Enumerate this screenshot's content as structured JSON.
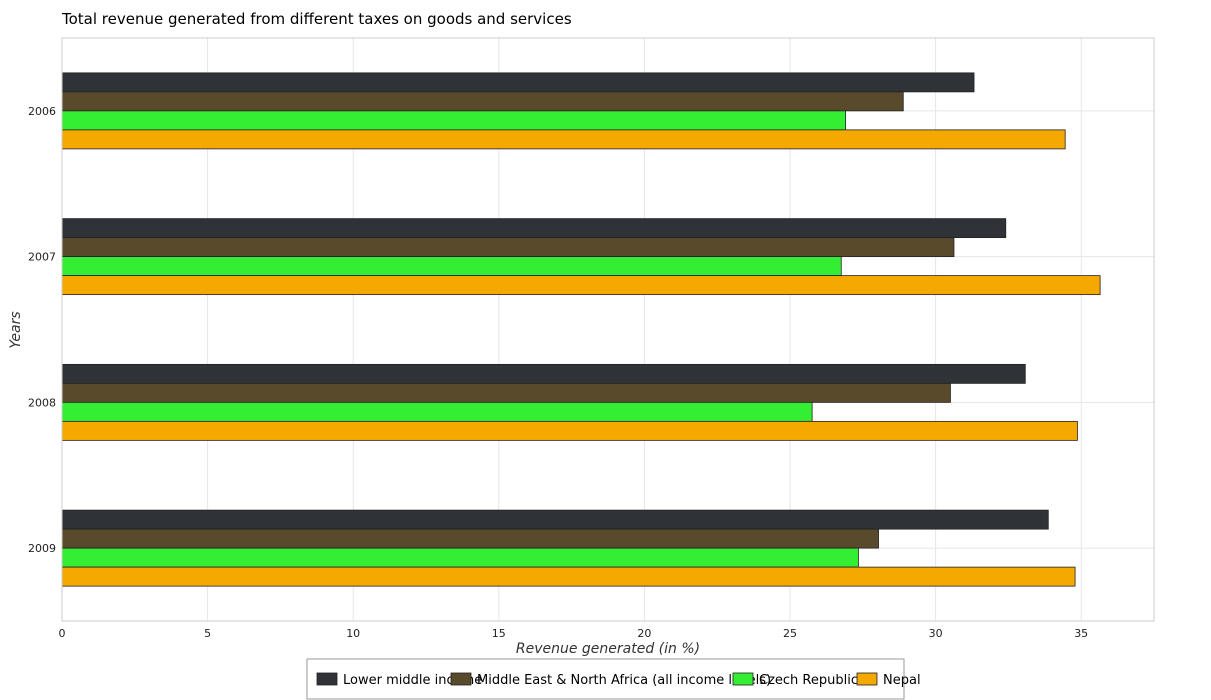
{
  "chart_data": {
    "type": "bar",
    "orientation": "horizontal",
    "title": "Total revenue generated from different taxes on goods and services",
    "xlabel": "Revenue generated (in %)",
    "ylabel": "Years",
    "xlim": [
      0,
      37.5
    ],
    "xticks": [
      0,
      5,
      10,
      15,
      20,
      25,
      30,
      35
    ],
    "grid": true,
    "legend_position": "bottom",
    "categories": [
      "2006",
      "2007",
      "2008",
      "2009"
    ],
    "series": [
      {
        "name": "Lower middle income",
        "color": "#2f3337",
        "values": [
          31.32,
          32.41,
          33.08,
          33.87
        ]
      },
      {
        "name": "Middle East & North Africa (all income levels)",
        "color": "#5a4a2c",
        "values": [
          28.89,
          30.63,
          30.51,
          28.04
        ]
      },
      {
        "name": "Czech Republic",
        "color": "#33ee33",
        "values": [
          26.91,
          26.76,
          25.76,
          27.35
        ]
      },
      {
        "name": "Nepal",
        "color": "#f5a800",
        "values": [
          34.45,
          35.65,
          34.87,
          34.79
        ]
      }
    ]
  }
}
